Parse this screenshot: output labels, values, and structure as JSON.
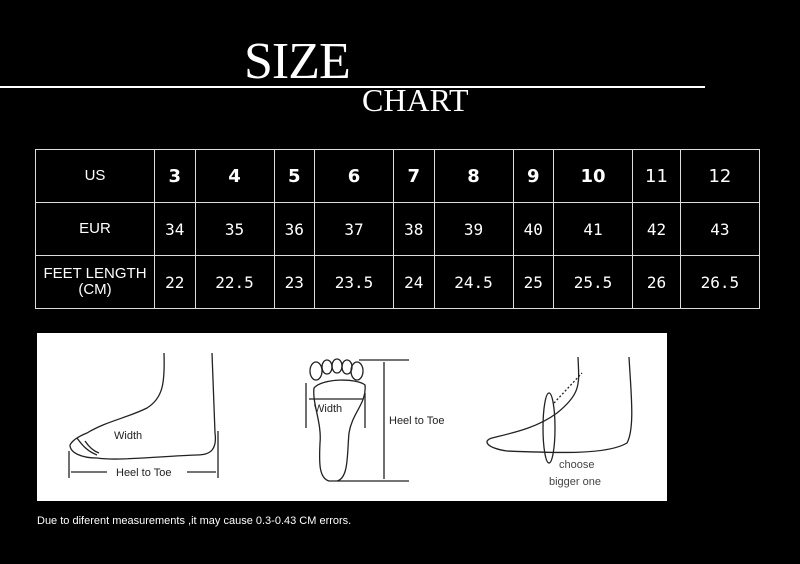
{
  "title": {
    "line1": "SIZE",
    "line2": "CHART"
  },
  "table": {
    "rows": [
      {
        "label": "US",
        "values": [
          "3",
          "4",
          "5",
          "6",
          "7",
          "8",
          "9",
          "10",
          "11",
          "12"
        ]
      },
      {
        "label": "EUR",
        "values": [
          "34",
          "35",
          "36",
          "37",
          "38",
          "39",
          "40",
          "41",
          "42",
          "43"
        ]
      },
      {
        "label": "FEET LENGTH (CM)",
        "values": [
          "22",
          "22.5",
          "23",
          "23.5",
          "24",
          "24.5",
          "25",
          "25.5",
          "26",
          "26.5"
        ]
      }
    ]
  },
  "diagram": {
    "side_width": "Width",
    "side_length": "Heel to Toe",
    "sole_width": "Width",
    "sole_length": "Heel to Toe",
    "tip_line1": "choose",
    "tip_line2": "bigger one"
  },
  "note": "Due to diferent measurements ,it may cause 0.3-0.43 CM errors."
}
